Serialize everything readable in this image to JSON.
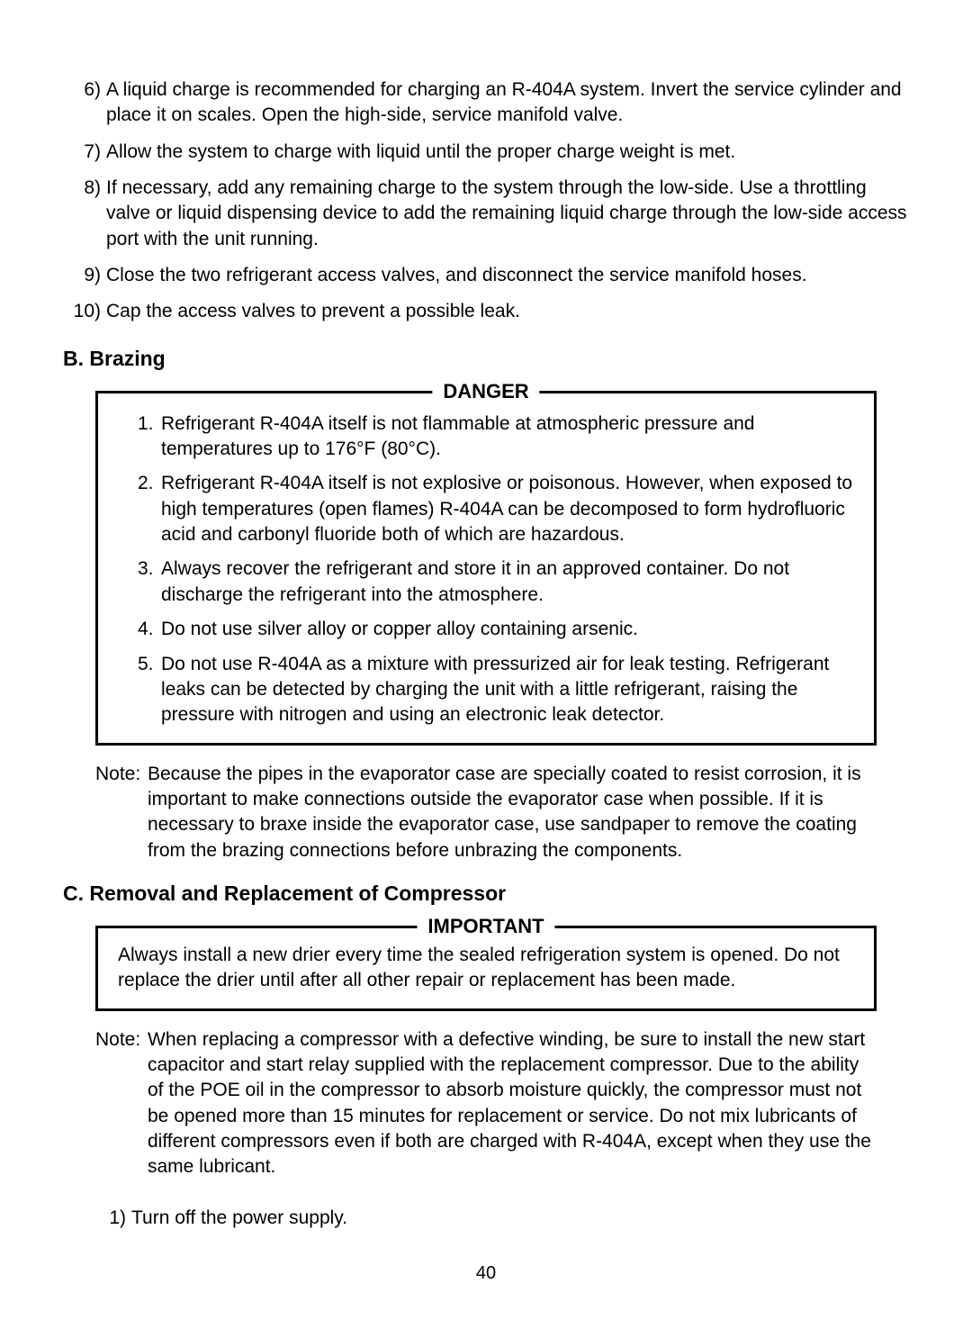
{
  "steps_top": [
    {
      "n": "6)",
      "t": "A liquid charge is recommended for charging an R-404A system. Invert the service cylinder and place it on scales.  Open the high-side, service manifold valve."
    },
    {
      "n": "7)",
      "t": "Allow the system to charge with liquid until the proper charge weight is met."
    },
    {
      "n": "8)",
      "t": "If necessary, add any remaining charge to the system through the low-side. Use a throttling valve or liquid dispensing device to add the remaining liquid charge through the low-side access port with the unit running."
    },
    {
      "n": "9)",
      "t": "Close the two refrigerant access valves, and disconnect the service manifold hoses."
    },
    {
      "n": "10)",
      "t": "Cap the access valves to prevent a possible leak."
    }
  ],
  "section_b": {
    "heading": "B. Brazing"
  },
  "danger": {
    "title": "DANGER",
    "items": [
      {
        "n": "1.",
        "t": "Refrigerant R-404A itself is not flammable at atmospheric pressure and temperatures up to 176°F (80°C)."
      },
      {
        "n": "2.",
        "t": "Refrigerant R-404A itself is not explosive or poisonous. However, when exposed to high temperatures (open flames) R-404A can be decomposed to form hydrofluoric acid and carbonyl fluoride both of which are hazardous."
      },
      {
        "n": "3.",
        "t": "Always recover the refrigerant and store it in an approved container. Do not discharge the refrigerant into the atmosphere."
      },
      {
        "n": "4.",
        "t": "Do not use silver alloy or copper alloy containing arsenic."
      },
      {
        "n": "5.",
        "t": "Do not use R-404A as a mixture with pressurized air for leak testing. Refrigerant leaks can be detected by charging the unit with a little refrigerant, raising the pressure with nitrogen and using an electronic leak detector."
      }
    ]
  },
  "note1": {
    "label": "Note:",
    "text": "Because the pipes in the evaporator case are specially coated to resist corrosion, it is important to make connections outside the evaporator case when possible. If it is necessary to braxe inside the evaporator case, use sandpaper to remove the coating from the brazing connections before unbrazing the components."
  },
  "section_c": {
    "heading": "C. Removal and Replacement of Compressor"
  },
  "important": {
    "title": "IMPORTANT",
    "text": "Always install a new drier every time the sealed refrigeration system is opened. Do not replace the drier until after all other repair or replacement has been made."
  },
  "note2": {
    "label": "Note:",
    "text": "When replacing a compressor with a defective winding, be sure to install the new start capacitor and start relay supplied with the replacement compressor. Due to the ability of the POE oil in the compressor to absorb moisture quickly, the compressor must not be opened more than 15 minutes for replacement or service. Do not mix lubricants of different compressors even if both are charged with R-404A, except when they use the same lubricant."
  },
  "final_steps": [
    {
      "n": "1)",
      "t": "Turn off the power supply."
    }
  ],
  "page_number": "40"
}
